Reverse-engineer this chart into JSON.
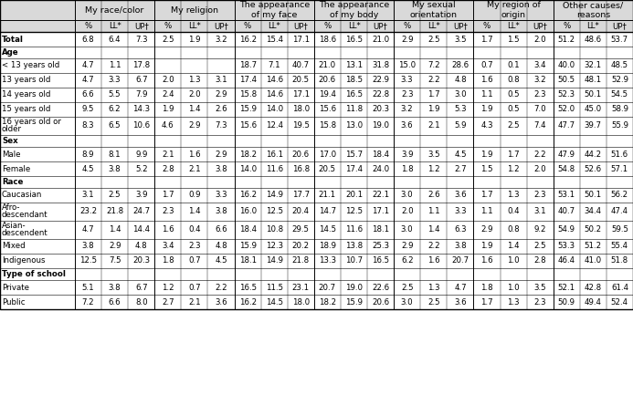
{
  "col_groups": [
    {
      "label": "My race/color"
    },
    {
      "label": "My religion"
    },
    {
      "label": "The appearance\nof my face"
    },
    {
      "label": "The appearance\nof my body"
    },
    {
      "label": "My sexual\norientation"
    },
    {
      "label": "My region of\norigin"
    },
    {
      "label": "Other causes/\nreasons"
    }
  ],
  "sub_cols": [
    "%",
    "LL*",
    "UP†"
  ],
  "rows": [
    {
      "label": "Total",
      "section": false,
      "bold": true,
      "indent": false,
      "values": [
        6.8,
        6.4,
        7.3,
        2.5,
        1.9,
        3.2,
        16.2,
        15.4,
        17.1,
        18.6,
        16.5,
        21.0,
        2.9,
        2.5,
        3.5,
        1.7,
        1.5,
        2.0,
        51.2,
        48.6,
        53.7
      ]
    },
    {
      "label": "Age",
      "section": true,
      "bold": true,
      "indent": false,
      "values": null
    },
    {
      "label": "  < 13 years old",
      "section": false,
      "bold": false,
      "indent": true,
      "values": [
        4.7,
        1.1,
        17.8,
        null,
        null,
        null,
        18.7,
        7.1,
        40.7,
        21.0,
        13.1,
        31.8,
        15.0,
        7.2,
        28.6,
        0.7,
        0.1,
        3.4,
        40.0,
        32.1,
        48.5
      ]
    },
    {
      "label": "  13 years old",
      "section": false,
      "bold": false,
      "indent": true,
      "values": [
        4.7,
        3.3,
        6.7,
        2.0,
        1.3,
        3.1,
        17.4,
        14.6,
        20.5,
        20.6,
        18.5,
        22.9,
        3.3,
        2.2,
        4.8,
        1.6,
        0.8,
        3.2,
        50.5,
        48.1,
        52.9
      ]
    },
    {
      "label": "  14 years old",
      "section": false,
      "bold": false,
      "indent": true,
      "values": [
        6.6,
        5.5,
        7.9,
        2.4,
        2.0,
        2.9,
        15.8,
        14.6,
        17.1,
        19.4,
        16.5,
        22.8,
        2.3,
        1.7,
        3.0,
        1.1,
        0.5,
        2.3,
        52.3,
        50.1,
        54.5
      ]
    },
    {
      "label": "  15 years old",
      "section": false,
      "bold": false,
      "indent": true,
      "values": [
        9.5,
        6.2,
        14.3,
        1.9,
        1.4,
        2.6,
        15.9,
        14.0,
        18.0,
        15.6,
        11.8,
        20.3,
        3.2,
        1.9,
        5.3,
        1.9,
        0.5,
        7.0,
        52.0,
        45.0,
        58.9
      ]
    },
    {
      "label": "  16 years old or\n  older",
      "section": false,
      "bold": false,
      "indent": true,
      "values": [
        8.3,
        6.5,
        10.6,
        4.6,
        2.9,
        7.3,
        15.6,
        12.4,
        19.5,
        15.8,
        13.0,
        19.0,
        3.6,
        2.1,
        5.9,
        4.3,
        2.5,
        7.4,
        47.7,
        39.7,
        55.9
      ]
    },
    {
      "label": "Sex",
      "section": true,
      "bold": true,
      "indent": false,
      "values": null
    },
    {
      "label": "  Male",
      "section": false,
      "bold": false,
      "indent": true,
      "values": [
        8.9,
        8.1,
        9.9,
        2.1,
        1.6,
        2.9,
        18.2,
        16.1,
        20.6,
        17.0,
        15.7,
        18.4,
        3.9,
        3.5,
        4.5,
        1.9,
        1.7,
        2.2,
        47.9,
        44.2,
        51.6
      ]
    },
    {
      "label": "  Female",
      "section": false,
      "bold": false,
      "indent": true,
      "values": [
        4.5,
        3.8,
        5.2,
        2.8,
        2.1,
        3.8,
        14.0,
        11.6,
        16.8,
        20.5,
        17.4,
        24.0,
        1.8,
        1.2,
        2.7,
        1.5,
        1.2,
        2.0,
        54.8,
        52.6,
        57.1
      ]
    },
    {
      "label": "Race",
      "section": true,
      "bold": true,
      "indent": false,
      "values": null
    },
    {
      "label": "  Caucasian",
      "section": false,
      "bold": false,
      "indent": true,
      "values": [
        3.1,
        2.5,
        3.9,
        1.7,
        0.9,
        3.3,
        16.2,
        14.9,
        17.7,
        21.1,
        20.1,
        22.1,
        3.0,
        2.6,
        3.6,
        1.7,
        1.3,
        2.3,
        53.1,
        50.1,
        56.2
      ]
    },
    {
      "label": "  Afro-\n  descendant",
      "section": false,
      "bold": false,
      "indent": true,
      "values": [
        23.2,
        21.8,
        24.7,
        2.3,
        1.4,
        3.8,
        16.0,
        12.5,
        20.4,
        14.7,
        12.5,
        17.1,
        2.0,
        1.1,
        3.3,
        1.1,
        0.4,
        3.1,
        40.7,
        34.4,
        47.4
      ]
    },
    {
      "label": "  Asian-\n  descendent",
      "section": false,
      "bold": false,
      "indent": true,
      "values": [
        4.7,
        1.4,
        14.4,
        1.6,
        0.4,
        6.6,
        18.4,
        10.8,
        29.5,
        14.5,
        11.6,
        18.1,
        3.0,
        1.4,
        6.3,
        2.9,
        0.8,
        9.2,
        54.9,
        50.2,
        59.5
      ]
    },
    {
      "label": "  Mixed",
      "section": false,
      "bold": false,
      "indent": true,
      "values": [
        3.8,
        2.9,
        4.8,
        3.4,
        2.3,
        4.8,
        15.9,
        12.3,
        20.2,
        18.9,
        13.8,
        25.3,
        2.9,
        2.2,
        3.8,
        1.9,
        1.4,
        2.5,
        53.3,
        51.2,
        55.4
      ]
    },
    {
      "label": "  Indigenous",
      "section": false,
      "bold": false,
      "indent": true,
      "values": [
        12.5,
        7.5,
        20.3,
        1.8,
        0.7,
        4.5,
        18.1,
        14.9,
        21.8,
        13.3,
        10.7,
        16.5,
        6.2,
        1.6,
        20.7,
        1.6,
        1.0,
        2.8,
        46.4,
        41.0,
        51.8
      ]
    },
    {
      "label": "Type of school",
      "section": true,
      "bold": true,
      "indent": false,
      "values": null
    },
    {
      "label": "  Private",
      "section": false,
      "bold": false,
      "indent": true,
      "values": [
        5.1,
        3.8,
        6.7,
        1.2,
        0.7,
        2.2,
        16.5,
        11.5,
        23.1,
        20.7,
        19.0,
        22.6,
        2.5,
        1.3,
        4.7,
        1.8,
        1.0,
        3.5,
        52.1,
        42.8,
        61.4
      ]
    },
    {
      "label": "  Public",
      "section": false,
      "bold": false,
      "indent": true,
      "values": [
        7.2,
        6.6,
        8.0,
        2.7,
        2.1,
        3.6,
        16.2,
        14.5,
        18.0,
        18.2,
        15.9,
        20.6,
        3.0,
        2.5,
        3.6,
        1.7,
        1.3,
        2.3,
        50.9,
        49.4,
        52.4
      ]
    }
  ],
  "bg_header": "#d9d9d9",
  "bg_white": "#ffffff",
  "line_color": "#000000",
  "font_size": 6.2,
  "header_font_size": 6.8
}
